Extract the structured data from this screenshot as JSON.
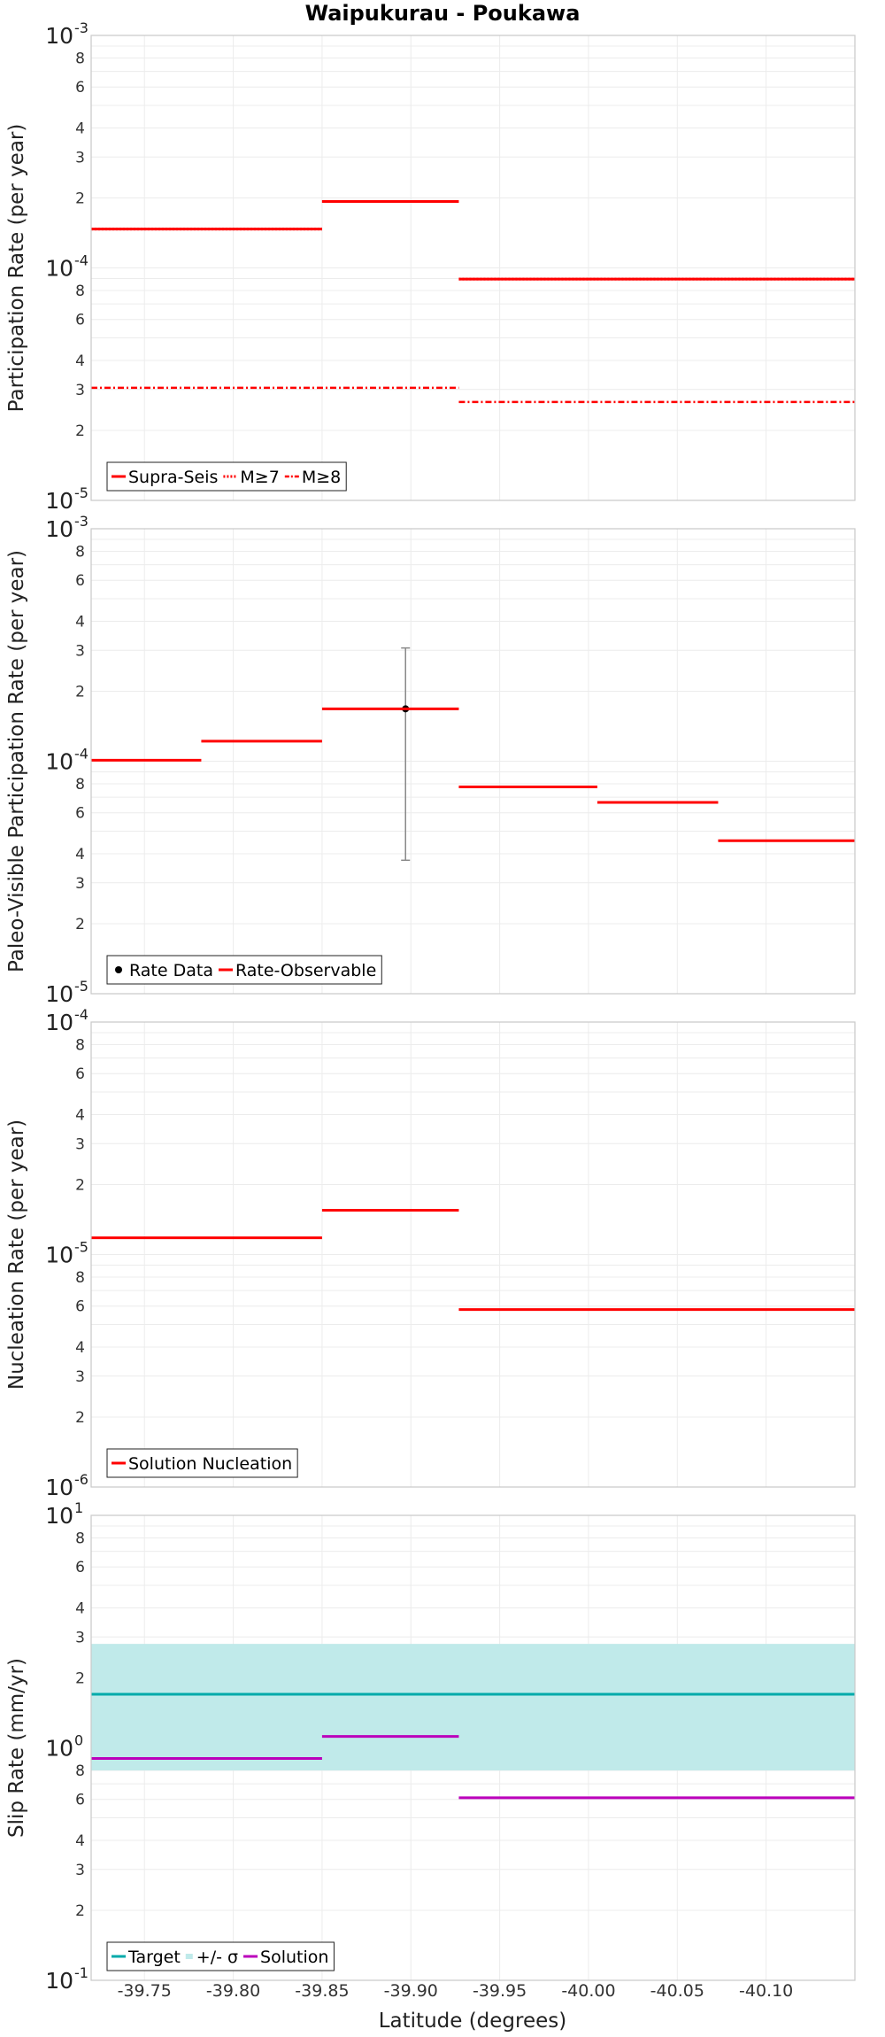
{
  "chart_data": {
    "title": "Waipukurau - Poukawa",
    "xlabel": "Latitude (degrees)",
    "x_ticks": [
      "-39.75",
      "-39.80",
      "-39.85",
      "-39.90",
      "-39.95",
      "-40.00",
      "-40.05",
      "-40.10"
    ],
    "x_tick_values": [
      -39.75,
      -39.8,
      -39.85,
      -39.9,
      -39.95,
      -40.0,
      -40.05,
      -40.1
    ],
    "xlim": [
      -39.72,
      -40.15
    ],
    "grid": true,
    "panels": [
      {
        "type": "line",
        "ylabel": "Participation Rate (per year)",
        "yscale": "log",
        "ylim": [
          1e-05,
          0.001
        ],
        "decade_labels": [
          {
            "base": "10",
            "exp": "-3"
          },
          {
            "base": "10",
            "exp": "-4"
          },
          {
            "base": "10",
            "exp": "-5"
          }
        ],
        "minor_labels": [
          "8",
          "6",
          "4",
          "3",
          "2"
        ],
        "legend_position": "bottom-left",
        "series": [
          {
            "name": "Supra-Seis",
            "color": "#ff0000",
            "style": "solid",
            "segments": [
              {
                "x": [
                  -39.72,
                  -39.85
                ],
                "y": 0.000147
              },
              {
                "x": [
                  -39.85,
                  -39.927
                ],
                "y": 0.000193
              },
              {
                "x": [
                  -39.927,
                  -40.15
                ],
                "y": 8.95e-05
              }
            ]
          },
          {
            "name": "M≥7",
            "color": "#ff0000",
            "style": "dotted",
            "segments": [
              {
                "x": [
                  -39.72,
                  -39.85
                ],
                "y": 0.000147
              },
              {
                "x": [
                  -39.85,
                  -39.927
                ],
                "y": 0.000193
              },
              {
                "x": [
                  -39.927,
                  -40.15
                ],
                "y": 8.95e-05
              }
            ]
          },
          {
            "name": "M≥8",
            "color": "#ff0000",
            "style": "dashdot",
            "segments": [
              {
                "x": [
                  -39.72,
                  -39.927
                ],
                "y": 3.05e-05
              },
              {
                "x": [
                  -39.927,
                  -40.15
                ],
                "y": 2.65e-05
              }
            ]
          }
        ]
      },
      {
        "type": "line",
        "ylabel": "Paleo-Visible Participation Rate (per year)",
        "yscale": "log",
        "ylim": [
          1e-05,
          0.001
        ],
        "decade_labels": [
          {
            "base": "10",
            "exp": "-3"
          },
          {
            "base": "10",
            "exp": "-4"
          },
          {
            "base": "10",
            "exp": "-5"
          }
        ],
        "minor_labels": [
          "8",
          "6",
          "4",
          "3",
          "2"
        ],
        "legend_position": "bottom-left",
        "series": [
          {
            "name": "Rate Data",
            "color": "#000000",
            "style": "point",
            "points": [
              {
                "x": -39.897,
                "y": 0.000168,
                "err_low": 3.75e-05,
                "err_high": 0.000307
              }
            ]
          },
          {
            "name": "Rate-Observable",
            "color": "#ff0000",
            "style": "solid",
            "segments": [
              {
                "x": [
                  -39.72,
                  -39.782
                ],
                "y": 0.000101
              },
              {
                "x": [
                  -39.782,
                  -39.85
                ],
                "y": 0.000122
              },
              {
                "x": [
                  -39.85,
                  -39.927
                ],
                "y": 0.000168
              },
              {
                "x": [
                  -39.927,
                  -40.005
                ],
                "y": 7.75e-05
              },
              {
                "x": [
                  -40.005,
                  -40.073
                ],
                "y": 6.65e-05
              },
              {
                "x": [
                  -40.073,
                  -40.15
                ],
                "y": 4.55e-05
              }
            ]
          }
        ]
      },
      {
        "type": "line",
        "ylabel": "Nucleation Rate (per year)",
        "yscale": "log",
        "ylim": [
          1e-06,
          0.0001
        ],
        "decade_labels": [
          {
            "base": "10",
            "exp": "-4"
          },
          {
            "base": "10",
            "exp": "-5"
          },
          {
            "base": "10",
            "exp": "-6"
          }
        ],
        "minor_labels": [
          "8",
          "6",
          "4",
          "3",
          "2"
        ],
        "legend_position": "bottom-left",
        "series": [
          {
            "name": "Solution Nucleation",
            "color": "#ff0000",
            "style": "solid",
            "segments": [
              {
                "x": [
                  -39.72,
                  -39.85
                ],
                "y": 1.18e-05
              },
              {
                "x": [
                  -39.85,
                  -39.927
                ],
                "y": 1.55e-05
              },
              {
                "x": [
                  -39.927,
                  -40.15
                ],
                "y": 5.8e-06
              }
            ]
          }
        ]
      },
      {
        "type": "line",
        "ylabel": "Slip Rate (mm/yr)",
        "yscale": "log",
        "ylim": [
          0.1,
          10
        ],
        "decade_labels": [
          {
            "base": "10",
            "exp": "1"
          },
          {
            "base": "10",
            "exp": "0"
          },
          {
            "base": "10",
            "exp": "-1"
          }
        ],
        "minor_labels": [
          "8",
          "6",
          "4",
          "3",
          "2"
        ],
        "legend_position": "bottom-left",
        "band": {
          "name": "+/- σ",
          "color": "#c0eaea",
          "low": 0.8,
          "high": 2.8
        },
        "series": [
          {
            "name": "Target",
            "color": "#00aaaa",
            "style": "solid",
            "segments": [
              {
                "x": [
                  -39.72,
                  -40.15
                ],
                "y": 1.7
              }
            ]
          },
          {
            "name": "Solution",
            "color": "#bb00bb",
            "style": "solid",
            "segments": [
              {
                "x": [
                  -39.72,
                  -39.85
                ],
                "y": 0.9
              },
              {
                "x": [
                  -39.85,
                  -39.927
                ],
                "y": 1.12
              },
              {
                "x": [
                  -39.927,
                  -40.15
                ],
                "y": 0.61
              }
            ]
          }
        ]
      }
    ]
  }
}
